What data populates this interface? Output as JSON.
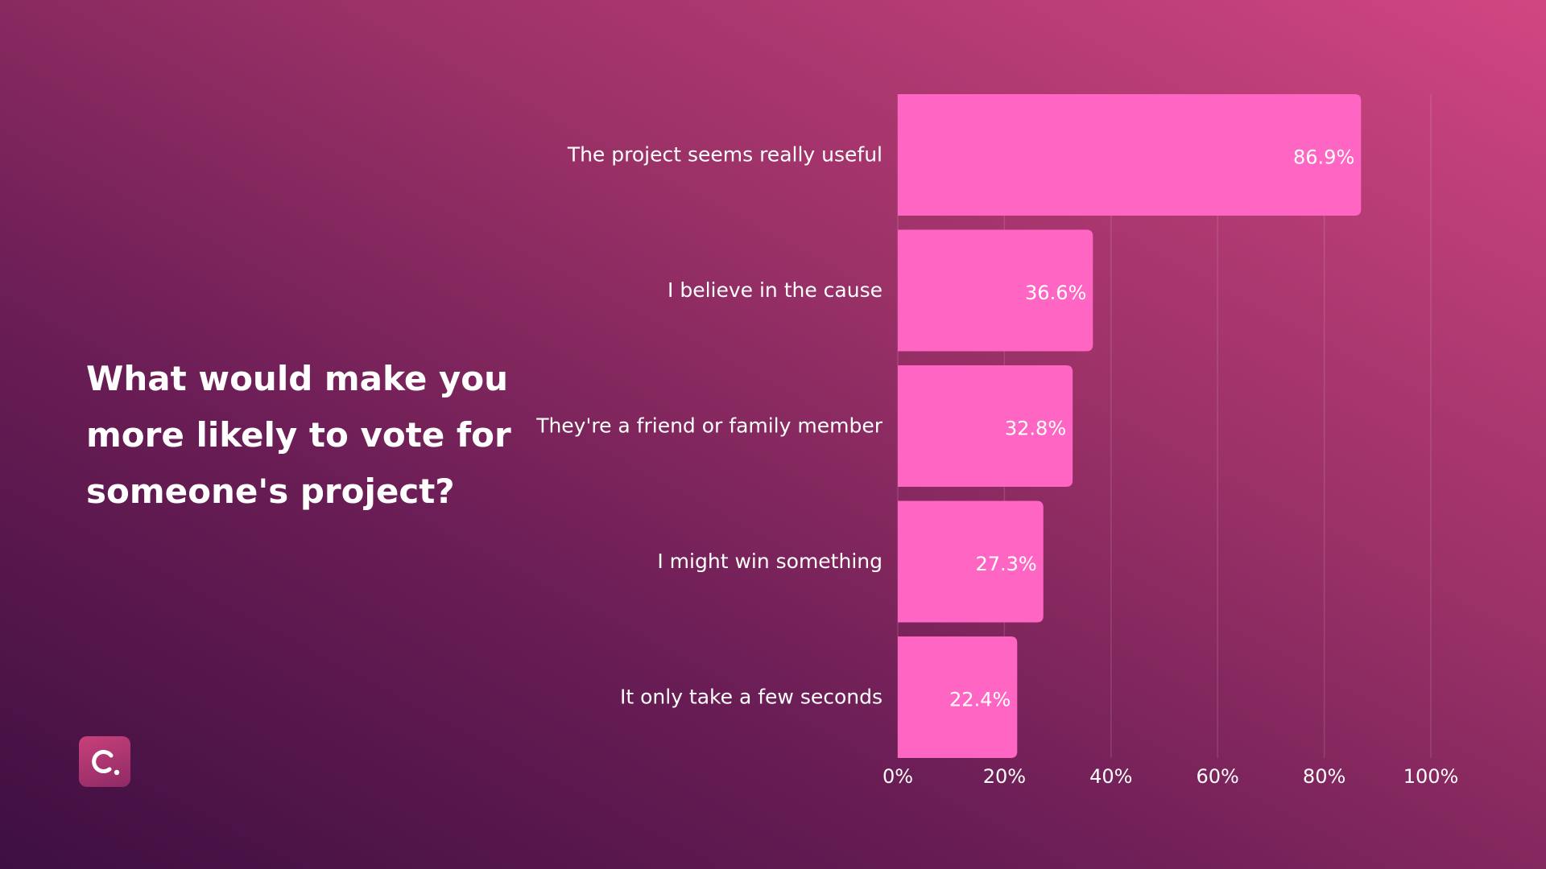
{
  "question": "What would make you more likely to vote for someone's project?",
  "logo_icon": "cube-c-logo",
  "colors": {
    "bar": "#ff66c4",
    "text": "#ffffff",
    "grid": "rgba(255,255,255,0.13)"
  },
  "chart_data": {
    "type": "bar",
    "orientation": "horizontal",
    "title": "",
    "xlabel": "",
    "ylabel": "",
    "categories": [
      "The project seems really useful",
      "I believe in the cause",
      "They're a friend or family member",
      "I might win something",
      "It only take a few seconds"
    ],
    "values": [
      86.9,
      36.6,
      32.8,
      27.3,
      22.4
    ],
    "value_labels": [
      "86.9%",
      "36.6%",
      "32.8%",
      "27.3%",
      "22.4%"
    ],
    "xlim": [
      0,
      100
    ],
    "ticks": [
      0,
      20,
      40,
      60,
      80,
      100
    ],
    "tick_labels": [
      "0%",
      "20%",
      "40%",
      "60%",
      "80%",
      "100%"
    ],
    "grid": true,
    "legend": "none"
  }
}
